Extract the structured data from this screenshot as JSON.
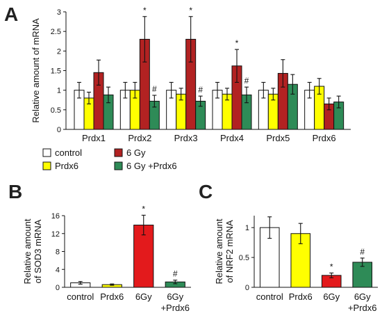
{
  "chart_data": [
    {
      "panel": "A",
      "type": "bar",
      "ylabel": "Relative amount of mRNA",
      "ylim": [
        0,
        3
      ],
      "yticks": [
        "0",
        "0.5",
        "1",
        "1.5",
        "2",
        "2.5",
        "3"
      ],
      "categories": [
        "Prdx1",
        "Prdx2",
        "Prdx3",
        "Prdx4",
        "Prdx5",
        "Prdx6"
      ],
      "series": [
        {
          "name": "control",
          "color": "#ffffff",
          "values": [
            1.0,
            1.0,
            1.0,
            1.0,
            1.0,
            1.0
          ],
          "err": [
            0.2,
            0.2,
            0.2,
            0.2,
            0.2,
            0.2
          ]
        },
        {
          "name": "Prdx6",
          "color": "#ffff00",
          "values": [
            0.8,
            1.0,
            0.9,
            0.9,
            0.9,
            1.1
          ],
          "err": [
            0.15,
            0.2,
            0.15,
            0.15,
            0.15,
            0.2
          ]
        },
        {
          "name": "6 Gy",
          "color": "#b22222",
          "values": [
            1.45,
            2.3,
            2.3,
            1.62,
            1.43,
            0.65
          ],
          "err": [
            0.32,
            0.58,
            0.58,
            0.42,
            0.35,
            0.15
          ]
        },
        {
          "name": "6 Gy +Prdx6",
          "color": "#2e8b57",
          "values": [
            0.88,
            0.72,
            0.72,
            0.88,
            1.15,
            0.7
          ],
          "err": [
            0.2,
            0.15,
            0.13,
            0.2,
            0.25,
            0.15
          ]
        }
      ],
      "annotations": [
        {
          "category": "Prdx2",
          "series": "6 Gy",
          "text": "*"
        },
        {
          "category": "Prdx2",
          "series": "6 Gy +Prdx6",
          "text": "#"
        },
        {
          "category": "Prdx3",
          "series": "6 Gy",
          "text": "*"
        },
        {
          "category": "Prdx3",
          "series": "6 Gy +Prdx6",
          "text": "#"
        },
        {
          "category": "Prdx4",
          "series": "6 Gy",
          "text": "*"
        },
        {
          "category": "Prdx4",
          "series": "6 Gy +Prdx6",
          "text": "#"
        }
      ],
      "legend": {
        "placement": "bottom"
      }
    },
    {
      "panel": "B",
      "type": "bar",
      "ylabel_lines": [
        "Relative amount",
        "of SOD3 mRNA"
      ],
      "ylim": [
        0,
        16
      ],
      "yticks": [
        "0",
        "4",
        "8",
        "12",
        "16"
      ],
      "categories": [
        "control",
        "Prdx6",
        "6Gy",
        "6Gy +Prdx6"
      ],
      "category_lines": [
        [
          "control"
        ],
        [
          "Prdx6"
        ],
        [
          "6Gy"
        ],
        [
          "6Gy",
          "+Prdx6"
        ]
      ],
      "values": [
        1.0,
        0.6,
        13.9,
        1.2
      ],
      "err": [
        0.3,
        0.15,
        2.2,
        0.4
      ],
      "colors": [
        "#ffffff",
        "#ffff00",
        "#e31a1c",
        "#2e8b57"
      ],
      "marks": [
        "",
        "",
        "*",
        "#"
      ]
    },
    {
      "panel": "C",
      "type": "bar",
      "ylabel_lines": [
        "Relative amount",
        "of NRF2 mRNA"
      ],
      "ylim": [
        0,
        1.2
      ],
      "yticks": [
        "0",
        "0.5",
        "1"
      ],
      "categories": [
        "control",
        "Prdx6",
        "6Gy",
        "6Gy +Prdx6"
      ],
      "category_lines": [
        [
          "control"
        ],
        [
          "Prdx6"
        ],
        [
          "6Gy"
        ],
        [
          "6Gy",
          "+Prdx6"
        ]
      ],
      "values": [
        1.0,
        0.9,
        0.2,
        0.42
      ],
      "err": [
        0.18,
        0.17,
        0.04,
        0.07
      ],
      "colors": [
        "#ffffff",
        "#ffff00",
        "#e31a1c",
        "#2e8b57"
      ],
      "marks": [
        "",
        "",
        "*",
        "#"
      ]
    }
  ]
}
